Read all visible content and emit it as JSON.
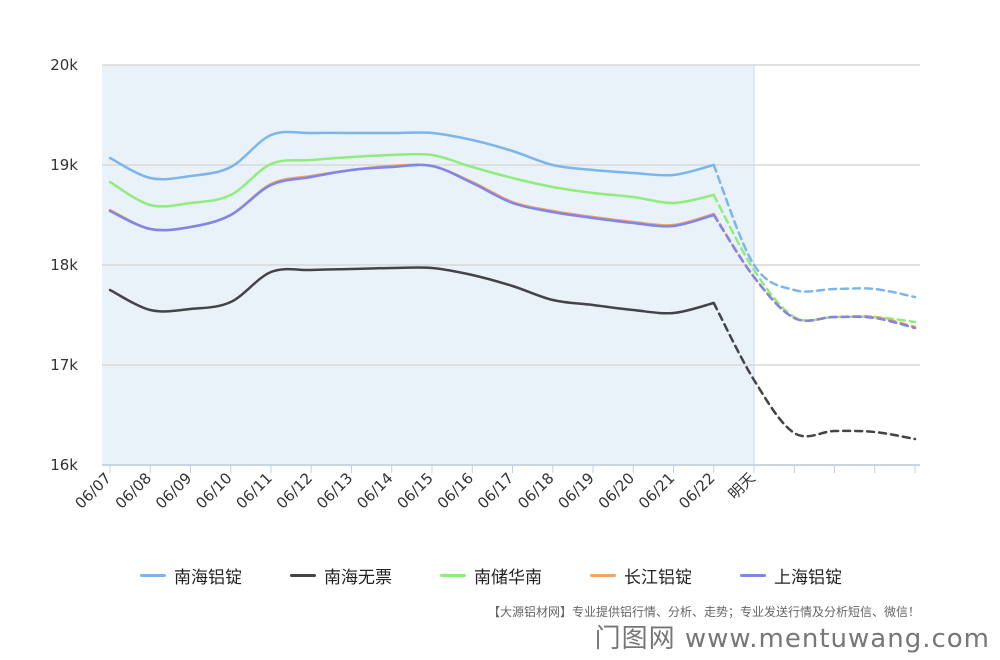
{
  "chart_data": {
    "type": "line",
    "categories": [
      "06/07",
      "06/08",
      "06/09",
      "06/10",
      "06/11",
      "06/12",
      "06/13",
      "06/14",
      "06/15",
      "06/16",
      "06/17",
      "06/18",
      "06/19",
      "06/20",
      "06/21",
      "06/22",
      "明天",
      "",
      "",
      "",
      ""
    ],
    "y_ticks": [
      "16k",
      "17k",
      "18k",
      "19k",
      "20k"
    ],
    "ylim": [
      16000,
      20000
    ],
    "forecast_from_index": 15,
    "grid": true,
    "legend_position": "bottom",
    "series": [
      {
        "name": "南海铝锭",
        "color": "#7cb5ec",
        "values": [
          19070,
          18870,
          18890,
          18980,
          19300,
          19320,
          19320,
          19320,
          19320,
          19250,
          19140,
          19000,
          18950,
          18920,
          18900,
          19000,
          18000,
          17750,
          17760,
          17760,
          17680
        ]
      },
      {
        "name": "南海无票",
        "color": "#434348",
        "values": [
          17750,
          17550,
          17560,
          17630,
          17930,
          17950,
          17960,
          17970,
          17970,
          17900,
          17790,
          17650,
          17600,
          17550,
          17520,
          17620,
          16850,
          16320,
          16340,
          16330,
          16260
        ]
      },
      {
        "name": "南储华南",
        "color": "#90ed7d",
        "values": [
          18830,
          18600,
          18620,
          18700,
          19010,
          19050,
          19080,
          19100,
          19100,
          18980,
          18870,
          18780,
          18720,
          18680,
          18620,
          18700,
          17950,
          17480,
          17480,
          17480,
          17430
        ]
      },
      {
        "name": "长江铝锭",
        "color": "#f7a35c",
        "values": [
          18550,
          18360,
          18380,
          18500,
          18810,
          18890,
          18950,
          18990,
          18990,
          18830,
          18630,
          18540,
          18480,
          18430,
          18400,
          18510,
          17880,
          17470,
          17480,
          17480,
          17380
        ]
      },
      {
        "name": "上海铝锭",
        "color": "#8085e9",
        "values": [
          18540,
          18360,
          18380,
          18500,
          18800,
          18880,
          18950,
          18980,
          18990,
          18820,
          18620,
          18530,
          18470,
          18420,
          18390,
          18500,
          17880,
          17470,
          17480,
          17470,
          17370
        ]
      }
    ]
  },
  "footer": {
    "note": "【大源铝材网】专业提供铝行情、分析、走势；专业发送行情及分析短信、微信！"
  },
  "watermark": {
    "text": "门图网 www.mentuwang.com"
  }
}
